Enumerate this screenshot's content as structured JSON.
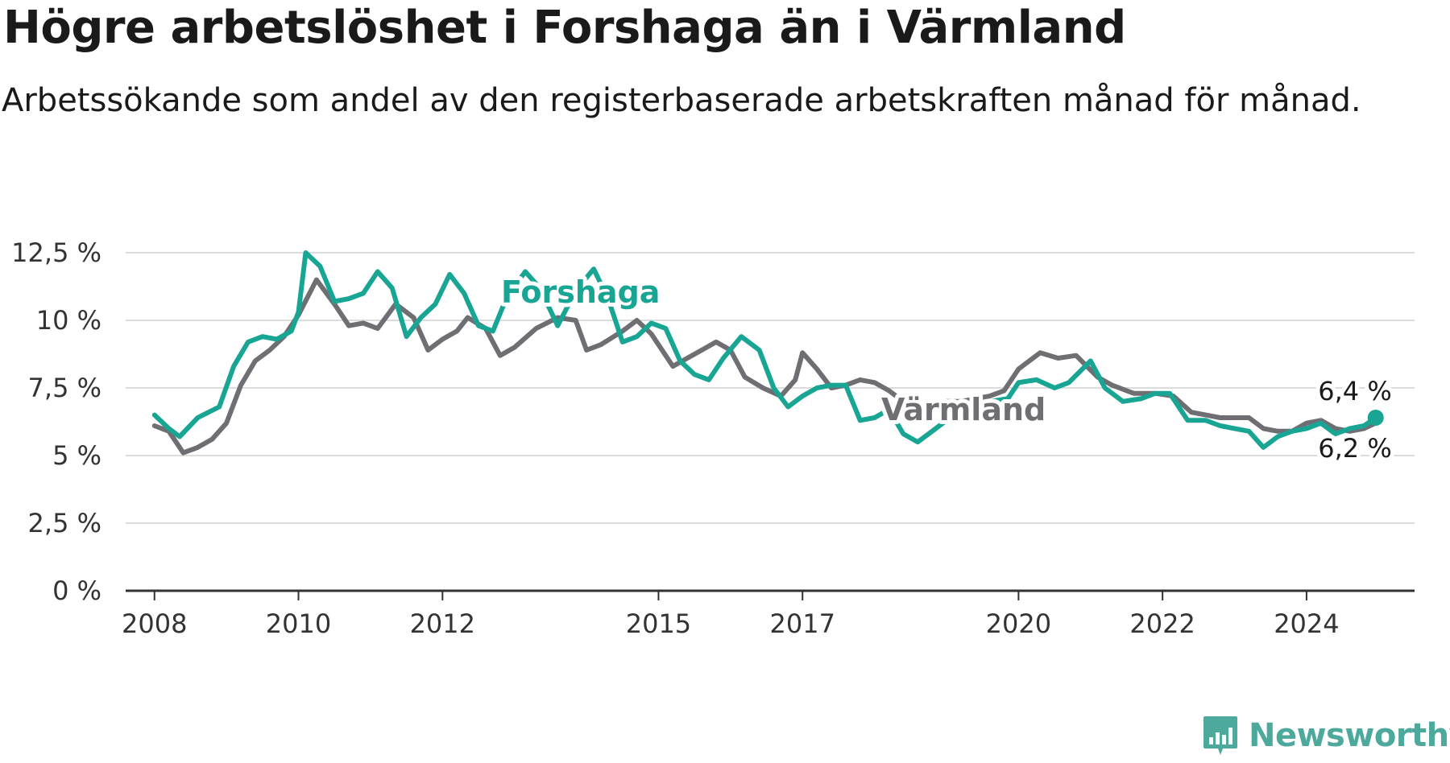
{
  "title": "Högre arbetslöshet i Forshaga än i Värmland",
  "subtitle": "Arbetssökande som andel av den registerbaserade arbetskraften månad för månad.",
  "brand": {
    "name": "Newsworthy",
    "icon": "newsworthy-logo-icon",
    "color": "#4ca99c"
  },
  "chart_data": {
    "type": "line",
    "title": "Högre arbetslöshet i Forshaga än i Värmland",
    "subtitle": "Arbetssökande som andel av den registerbaserade arbetskraften månad för månad.",
    "xlabel": "",
    "ylabel": "",
    "xlim": [
      2007.6,
      2025.5
    ],
    "ylim": [
      0,
      12.5
    ],
    "yticks": [
      0,
      2.5,
      5,
      7.5,
      10,
      12.5
    ],
    "ytick_labels": [
      "0 %",
      "2,5 %",
      "5 %",
      "7,5 %",
      "10 %",
      "12,5 %"
    ],
    "xticks": [
      2008,
      2010,
      2012,
      2015,
      2017,
      2020,
      2022,
      2024
    ],
    "xtick_labels": [
      "2008",
      "2010",
      "2012",
      "2015",
      "2017",
      "2020",
      "2022",
      "2024"
    ],
    "grid": true,
    "legend": "none",
    "series": [
      {
        "name": "Värmland",
        "color": "#6e6e73",
        "points": [
          [
            2008.0,
            6.1
          ],
          [
            2008.2,
            5.9
          ],
          [
            2008.4,
            5.1
          ],
          [
            2008.6,
            5.3
          ],
          [
            2008.8,
            5.6
          ],
          [
            2009.0,
            6.2
          ],
          [
            2009.2,
            7.6
          ],
          [
            2009.4,
            8.5
          ],
          [
            2009.6,
            8.9
          ],
          [
            2009.8,
            9.4
          ],
          [
            2010.0,
            10.2
          ],
          [
            2010.25,
            11.5
          ],
          [
            2010.5,
            10.6
          ],
          [
            2010.7,
            9.8
          ],
          [
            2010.9,
            9.9
          ],
          [
            2011.1,
            9.7
          ],
          [
            2011.35,
            10.6
          ],
          [
            2011.6,
            10.1
          ],
          [
            2011.8,
            8.9
          ],
          [
            2012.0,
            9.3
          ],
          [
            2012.2,
            9.6
          ],
          [
            2012.35,
            10.1
          ],
          [
            2012.6,
            9.7
          ],
          [
            2012.8,
            8.7
          ],
          [
            2013.0,
            9.0
          ],
          [
            2013.3,
            9.7
          ],
          [
            2013.6,
            10.1
          ],
          [
            2013.85,
            10.0
          ],
          [
            2014.0,
            8.9
          ],
          [
            2014.2,
            9.1
          ],
          [
            2014.5,
            9.6
          ],
          [
            2014.7,
            10.0
          ],
          [
            2014.9,
            9.5
          ],
          [
            2015.2,
            8.3
          ],
          [
            2015.4,
            8.6
          ],
          [
            2015.6,
            8.9
          ],
          [
            2015.8,
            9.2
          ],
          [
            2016.0,
            8.9
          ],
          [
            2016.2,
            7.9
          ],
          [
            2016.45,
            7.5
          ],
          [
            2016.7,
            7.2
          ],
          [
            2016.9,
            7.8
          ],
          [
            2017.0,
            8.8
          ],
          [
            2017.2,
            8.2
          ],
          [
            2017.4,
            7.5
          ],
          [
            2017.6,
            7.6
          ],
          [
            2017.8,
            7.8
          ],
          [
            2018.0,
            7.7
          ],
          [
            2018.2,
            7.4
          ],
          [
            2018.4,
            7.0
          ],
          [
            2018.6,
            6.8
          ],
          [
            2018.8,
            6.9
          ],
          [
            2019.0,
            7.0
          ],
          [
            2019.2,
            7.0
          ],
          [
            2019.4,
            7.1
          ],
          [
            2019.6,
            7.2
          ],
          [
            2019.8,
            7.4
          ],
          [
            2020.0,
            8.2
          ],
          [
            2020.3,
            8.8
          ],
          [
            2020.55,
            8.6
          ],
          [
            2020.8,
            8.7
          ],
          [
            2021.1,
            7.9
          ],
          [
            2021.3,
            7.6
          ],
          [
            2021.6,
            7.3
          ],
          [
            2021.9,
            7.3
          ],
          [
            2022.15,
            7.2
          ],
          [
            2022.4,
            6.6
          ],
          [
            2022.6,
            6.5
          ],
          [
            2022.8,
            6.4
          ],
          [
            2023.0,
            6.4
          ],
          [
            2023.2,
            6.4
          ],
          [
            2023.4,
            6.0
          ],
          [
            2023.6,
            5.9
          ],
          [
            2023.8,
            5.9
          ],
          [
            2024.0,
            6.2
          ],
          [
            2024.2,
            6.3
          ],
          [
            2024.4,
            6.0
          ],
          [
            2024.6,
            5.9
          ],
          [
            2024.8,
            6.0
          ],
          [
            2024.96,
            6.2
          ]
        ]
      },
      {
        "name": "Forshaga",
        "color": "#18a594",
        "points": [
          [
            2008.0,
            6.5
          ],
          [
            2008.2,
            6.0
          ],
          [
            2008.35,
            5.7
          ],
          [
            2008.6,
            6.4
          ],
          [
            2008.9,
            6.8
          ],
          [
            2009.1,
            8.3
          ],
          [
            2009.3,
            9.2
          ],
          [
            2009.5,
            9.4
          ],
          [
            2009.7,
            9.3
          ],
          [
            2009.9,
            9.6
          ],
          [
            2010.0,
            10.3
          ],
          [
            2010.1,
            12.5
          ],
          [
            2010.3,
            12.0
          ],
          [
            2010.5,
            10.7
          ],
          [
            2010.7,
            10.8
          ],
          [
            2010.9,
            11.0
          ],
          [
            2011.1,
            11.8
          ],
          [
            2011.3,
            11.2
          ],
          [
            2011.5,
            9.4
          ],
          [
            2011.7,
            10.1
          ],
          [
            2011.9,
            10.6
          ],
          [
            2012.1,
            11.7
          ],
          [
            2012.3,
            11.0
          ],
          [
            2012.5,
            9.8
          ],
          [
            2012.7,
            9.6
          ],
          [
            2012.9,
            10.9
          ],
          [
            2013.15,
            11.8
          ],
          [
            2013.35,
            11.2
          ],
          [
            2013.6,
            9.8
          ],
          [
            2013.85,
            11.1
          ],
          [
            2014.1,
            11.9
          ],
          [
            2014.3,
            10.8
          ],
          [
            2014.5,
            9.2
          ],
          [
            2014.7,
            9.4
          ],
          [
            2014.9,
            9.9
          ],
          [
            2015.1,
            9.7
          ],
          [
            2015.3,
            8.5
          ],
          [
            2015.5,
            8.0
          ],
          [
            2015.7,
            7.8
          ],
          [
            2015.9,
            8.6
          ],
          [
            2016.15,
            9.4
          ],
          [
            2016.4,
            8.9
          ],
          [
            2016.6,
            7.5
          ],
          [
            2016.8,
            6.8
          ],
          [
            2017.0,
            7.2
          ],
          [
            2017.2,
            7.5
          ],
          [
            2017.4,
            7.6
          ],
          [
            2017.6,
            7.6
          ],
          [
            2017.8,
            6.3
          ],
          [
            2018.0,
            6.4
          ],
          [
            2018.2,
            6.7
          ],
          [
            2018.4,
            5.8
          ],
          [
            2018.6,
            5.5
          ],
          [
            2018.8,
            5.9
          ],
          [
            2019.0,
            6.3
          ],
          [
            2019.3,
            6.6
          ],
          [
            2019.6,
            7.0
          ],
          [
            2019.85,
            7.1
          ],
          [
            2020.0,
            7.7
          ],
          [
            2020.25,
            7.8
          ],
          [
            2020.5,
            7.5
          ],
          [
            2020.7,
            7.7
          ],
          [
            2021.0,
            8.5
          ],
          [
            2021.2,
            7.5
          ],
          [
            2021.45,
            7.0
          ],
          [
            2021.7,
            7.1
          ],
          [
            2021.9,
            7.3
          ],
          [
            2022.1,
            7.3
          ],
          [
            2022.35,
            6.3
          ],
          [
            2022.6,
            6.3
          ],
          [
            2022.8,
            6.1
          ],
          [
            2023.0,
            6.0
          ],
          [
            2023.2,
            5.9
          ],
          [
            2023.4,
            5.3
          ],
          [
            2023.6,
            5.7
          ],
          [
            2023.8,
            5.9
          ],
          [
            2024.0,
            6.0
          ],
          [
            2024.2,
            6.2
          ],
          [
            2024.4,
            5.8
          ],
          [
            2024.6,
            6.0
          ],
          [
            2024.8,
            6.1
          ],
          [
            2024.96,
            6.4
          ]
        ]
      }
    ],
    "annotations": {
      "series_labels": [
        "Forshaga",
        "Värmland"
      ],
      "end_values": {
        "Forshaga": "6,4 %",
        "Värmland": "6,2 %"
      }
    }
  }
}
